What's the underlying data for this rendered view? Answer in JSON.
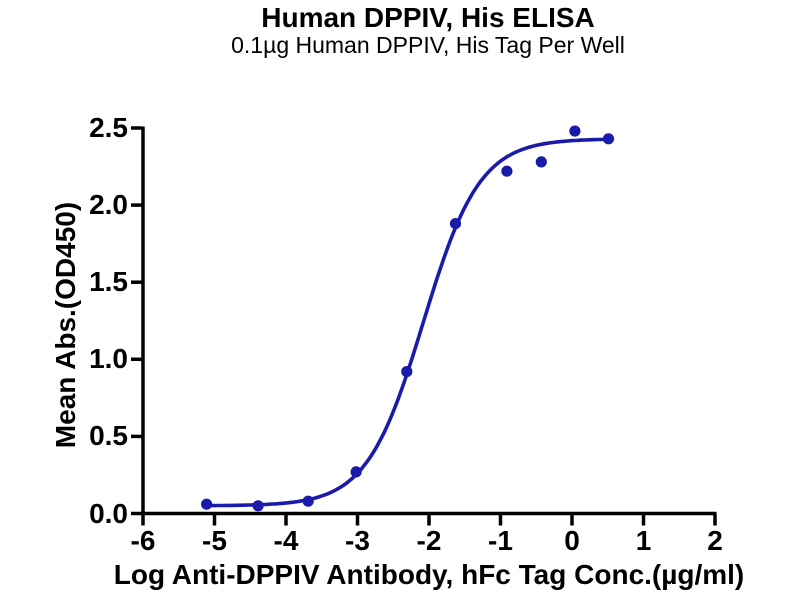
{
  "page": {
    "background": "#ffffff"
  },
  "chart_data": {
    "type": "scatter",
    "title": "Human DPPIV, His ELISA",
    "subtitle": "0.1µg Human DPPIV, His Tag Per Well",
    "xlabel": "Log Anti-DPPIV Antibody, hFc Tag Conc.(µg/ml)",
    "ylabel": "Mean Abs.(OD450)",
    "xlim": [
      -6,
      2
    ],
    "ylim": [
      0,
      2.5
    ],
    "x_ticks": [
      -6,
      -5,
      -4,
      -3,
      -2,
      -1,
      0,
      1,
      2
    ],
    "x_tick_labels": [
      "-6",
      "-5",
      "-4",
      "-3",
      "-2",
      "-1",
      "0",
      "1",
      "2"
    ],
    "y_ticks": [
      0,
      0.5,
      1,
      1.5,
      2,
      2.5
    ],
    "y_tick_labels": [
      "0.0",
      "0.5",
      "1.0",
      "1.5",
      "2.0",
      "2.5"
    ],
    "grid": false,
    "legend": "none",
    "colors": {
      "series": "#1b1baa",
      "axis": "#000000",
      "text": "#000000"
    },
    "series": [
      {
        "marker": "circle",
        "points": [
          {
            "x": -5.11,
            "y": 0.06
          },
          {
            "x": -4.39,
            "y": 0.05
          },
          {
            "x": -3.69,
            "y": 0.08
          },
          {
            "x": -3.02,
            "y": 0.27
          },
          {
            "x": -2.31,
            "y": 0.92
          },
          {
            "x": -1.63,
            "y": 1.88
          },
          {
            "x": -0.91,
            "y": 2.22
          },
          {
            "x": -0.43,
            "y": 2.28
          },
          {
            "x": 0.04,
            "y": 2.48
          },
          {
            "x": 0.51,
            "y": 2.43
          }
        ]
      }
    ],
    "fit_curve": {
      "model": "4PL",
      "bottom": 0.05,
      "top": 2.43,
      "logEC50": -2.08,
      "hill": 1.1,
      "x_start": -5.11,
      "x_end": 0.55
    }
  }
}
